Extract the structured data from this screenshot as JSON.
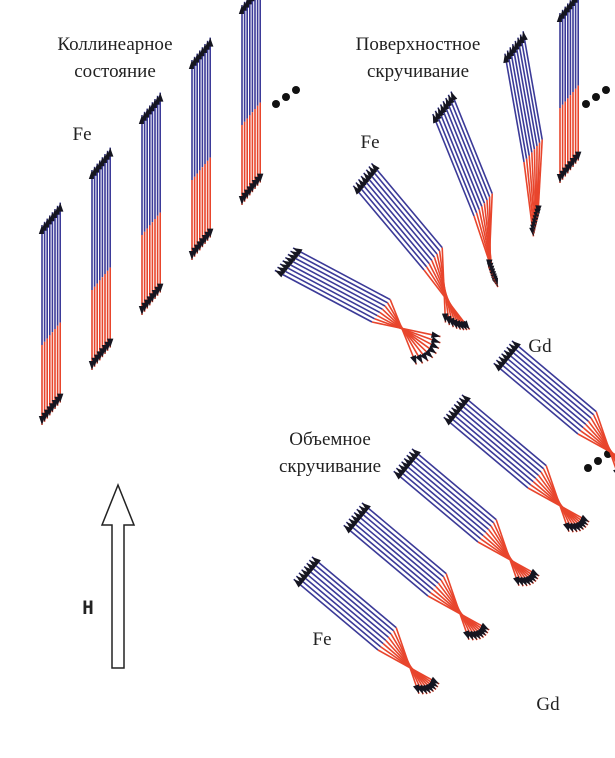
{
  "panels": [
    {
      "title_lines": [
        "Коллинеарное",
        "состояние"
      ],
      "labels": [
        "Fe"
      ]
    },
    {
      "title_lines": [
        "Поверхностное",
        "скручивание"
      ],
      "labels": [
        "Fe",
        "Gd"
      ]
    },
    {
      "title_lines": [
        "Объемное",
        "скручивание"
      ],
      "labels": [
        "Fe",
        "Gd"
      ]
    }
  ],
  "field_label": "H"
}
